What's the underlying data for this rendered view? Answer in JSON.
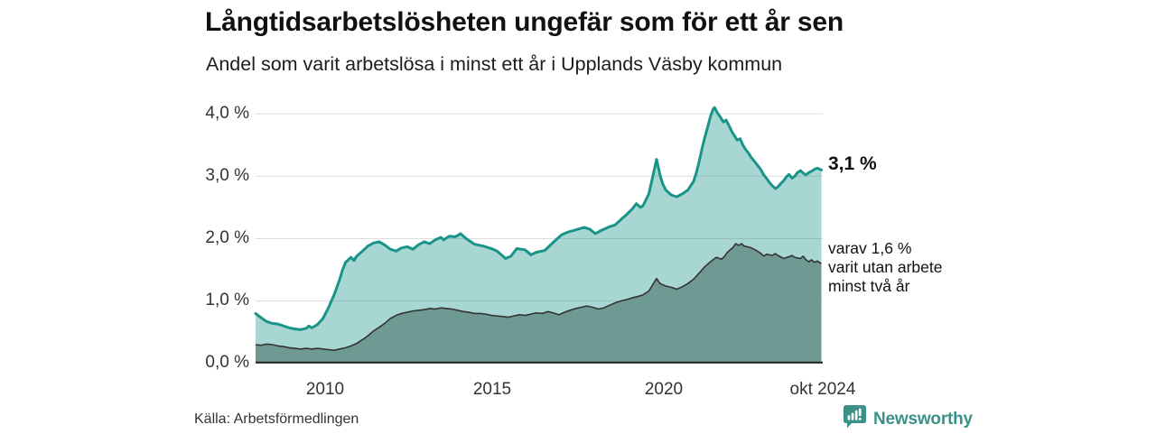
{
  "title": "Långtidsarbetslösheten ungefär som för ett år sen",
  "subtitle": "Andel som varit arbetslösa i minst ett år i Upplands Väsby kommun",
  "source": "Källa: Arbetsförmedlingen",
  "branding": {
    "name": "Newsworthy"
  },
  "annotations": {
    "total_end_label": "3,1 %",
    "subset_end_lines": [
      "varav 1,6 %",
      "varit utan arbete",
      "minst två år"
    ]
  },
  "colors": {
    "line_total": "#1a9488",
    "fill_total": "rgba(26,148,136,0.38)",
    "line_subset": "#333333",
    "fill_subset": "#6f9a94",
    "grid": "#dcdcdc",
    "axis": "#222222",
    "text": "#333333",
    "brand_teal": "#3b9188"
  },
  "chart_data": {
    "type": "area",
    "unit": "%",
    "xlabel": "",
    "ylabel": "",
    "xlim": [
      2008.0,
      2024.83
    ],
    "ylim": [
      0,
      4.1
    ],
    "grid": true,
    "gridlines": [
      1,
      2,
      3,
      4
    ],
    "y_ticks": [
      "0,0 %",
      "1,0 %",
      "2,0 %",
      "3,0 %",
      "4,0 %"
    ],
    "x_ticks": [
      "2010",
      "2015",
      "2020",
      "okt 2024"
    ],
    "x_tick_years": [
      2010,
      2015,
      2020,
      2024.79
    ],
    "legend_position": "direct-labels-right",
    "series": [
      {
        "name": "Andel arbetslösa minst ett år",
        "end_value": 3.1,
        "color": "#1a9488",
        "fill": "rgba(26,148,136,0.38)",
        "stroke_width": 3,
        "points": [
          [
            2008.0,
            0.8
          ],
          [
            2008.17,
            0.73
          ],
          [
            2008.33,
            0.67
          ],
          [
            2008.5,
            0.64
          ],
          [
            2008.67,
            0.63
          ],
          [
            2008.83,
            0.6
          ],
          [
            2009.0,
            0.57
          ],
          [
            2009.17,
            0.55
          ],
          [
            2009.33,
            0.54
          ],
          [
            2009.5,
            0.56
          ],
          [
            2009.58,
            0.6
          ],
          [
            2009.67,
            0.57
          ],
          [
            2009.83,
            0.62
          ],
          [
            2010.0,
            0.72
          ],
          [
            2010.17,
            0.9
          ],
          [
            2010.33,
            1.1
          ],
          [
            2010.5,
            1.35
          ],
          [
            2010.58,
            1.5
          ],
          [
            2010.67,
            1.62
          ],
          [
            2010.83,
            1.7
          ],
          [
            2010.92,
            1.65
          ],
          [
            2011.0,
            1.72
          ],
          [
            2011.17,
            1.8
          ],
          [
            2011.33,
            1.88
          ],
          [
            2011.5,
            1.93
          ],
          [
            2011.67,
            1.95
          ],
          [
            2011.83,
            1.9
          ],
          [
            2012.0,
            1.83
          ],
          [
            2012.17,
            1.8
          ],
          [
            2012.33,
            1.85
          ],
          [
            2012.5,
            1.87
          ],
          [
            2012.67,
            1.83
          ],
          [
            2012.83,
            1.9
          ],
          [
            2013.0,
            1.95
          ],
          [
            2013.17,
            1.92
          ],
          [
            2013.33,
            1.98
          ],
          [
            2013.5,
            2.02
          ],
          [
            2013.58,
            1.98
          ],
          [
            2013.75,
            2.04
          ],
          [
            2013.92,
            2.03
          ],
          [
            2014.0,
            2.05
          ],
          [
            2014.08,
            2.08
          ],
          [
            2014.25,
            2.0
          ],
          [
            2014.5,
            1.91
          ],
          [
            2014.75,
            1.88
          ],
          [
            2015.0,
            1.84
          ],
          [
            2015.17,
            1.8
          ],
          [
            2015.42,
            1.68
          ],
          [
            2015.58,
            1.72
          ],
          [
            2015.75,
            1.84
          ],
          [
            2016.0,
            1.82
          ],
          [
            2016.17,
            1.74
          ],
          [
            2016.33,
            1.78
          ],
          [
            2016.58,
            1.81
          ],
          [
            2016.83,
            1.94
          ],
          [
            2017.08,
            2.06
          ],
          [
            2017.25,
            2.1
          ],
          [
            2017.5,
            2.14
          ],
          [
            2017.75,
            2.18
          ],
          [
            2017.92,
            2.15
          ],
          [
            2018.08,
            2.08
          ],
          [
            2018.25,
            2.13
          ],
          [
            2018.5,
            2.19
          ],
          [
            2018.67,
            2.22
          ],
          [
            2018.83,
            2.3
          ],
          [
            2019.0,
            2.38
          ],
          [
            2019.17,
            2.47
          ],
          [
            2019.3,
            2.56
          ],
          [
            2019.42,
            2.5
          ],
          [
            2019.5,
            2.53
          ],
          [
            2019.67,
            2.72
          ],
          [
            2019.83,
            3.1
          ],
          [
            2019.9,
            3.27
          ],
          [
            2020.0,
            3.02
          ],
          [
            2020.08,
            2.88
          ],
          [
            2020.17,
            2.78
          ],
          [
            2020.33,
            2.7
          ],
          [
            2020.5,
            2.67
          ],
          [
            2020.67,
            2.72
          ],
          [
            2020.83,
            2.78
          ],
          [
            2021.0,
            2.92
          ],
          [
            2021.08,
            3.06
          ],
          [
            2021.17,
            3.25
          ],
          [
            2021.25,
            3.45
          ],
          [
            2021.33,
            3.62
          ],
          [
            2021.42,
            3.8
          ],
          [
            2021.5,
            3.96
          ],
          [
            2021.58,
            4.08
          ],
          [
            2021.62,
            4.1
          ],
          [
            2021.7,
            4.02
          ],
          [
            2021.79,
            3.95
          ],
          [
            2021.88,
            3.87
          ],
          [
            2021.96,
            3.9
          ],
          [
            2022.04,
            3.82
          ],
          [
            2022.13,
            3.72
          ],
          [
            2022.21,
            3.65
          ],
          [
            2022.29,
            3.58
          ],
          [
            2022.38,
            3.6
          ],
          [
            2022.46,
            3.5
          ],
          [
            2022.54,
            3.43
          ],
          [
            2022.63,
            3.37
          ],
          [
            2022.71,
            3.3
          ],
          [
            2022.83,
            3.22
          ],
          [
            2022.92,
            3.16
          ],
          [
            2023.0,
            3.1
          ],
          [
            2023.08,
            3.02
          ],
          [
            2023.17,
            2.96
          ],
          [
            2023.25,
            2.9
          ],
          [
            2023.33,
            2.85
          ],
          [
            2023.42,
            2.8
          ],
          [
            2023.5,
            2.83
          ],
          [
            2023.58,
            2.88
          ],
          [
            2023.67,
            2.93
          ],
          [
            2023.75,
            2.99
          ],
          [
            2023.83,
            3.03
          ],
          [
            2023.92,
            2.97
          ],
          [
            2024.0,
            3.0
          ],
          [
            2024.08,
            3.06
          ],
          [
            2024.17,
            3.09
          ],
          [
            2024.25,
            3.05
          ],
          [
            2024.33,
            3.02
          ],
          [
            2024.42,
            3.06
          ],
          [
            2024.5,
            3.08
          ],
          [
            2024.58,
            3.11
          ],
          [
            2024.67,
            3.13
          ],
          [
            2024.79,
            3.1
          ]
        ]
      },
      {
        "name": "varav utan arbete minst två år",
        "end_value": 1.6,
        "color": "#333333",
        "fill": "#6f9a94",
        "stroke_width": 1.6,
        "points": [
          [
            2008.0,
            0.3
          ],
          [
            2008.17,
            0.29
          ],
          [
            2008.33,
            0.31
          ],
          [
            2008.5,
            0.3
          ],
          [
            2008.67,
            0.28
          ],
          [
            2008.83,
            0.27
          ],
          [
            2009.0,
            0.25
          ],
          [
            2009.17,
            0.24
          ],
          [
            2009.33,
            0.23
          ],
          [
            2009.5,
            0.24
          ],
          [
            2009.67,
            0.23
          ],
          [
            2009.83,
            0.24
          ],
          [
            2010.0,
            0.23
          ],
          [
            2010.17,
            0.22
          ],
          [
            2010.33,
            0.21
          ],
          [
            2010.5,
            0.23
          ],
          [
            2010.67,
            0.25
          ],
          [
            2010.83,
            0.28
          ],
          [
            2011.0,
            0.32
          ],
          [
            2011.17,
            0.38
          ],
          [
            2011.33,
            0.44
          ],
          [
            2011.5,
            0.52
          ],
          [
            2011.67,
            0.58
          ],
          [
            2011.83,
            0.64
          ],
          [
            2012.0,
            0.72
          ],
          [
            2012.17,
            0.77
          ],
          [
            2012.33,
            0.8
          ],
          [
            2012.5,
            0.82
          ],
          [
            2012.67,
            0.84
          ],
          [
            2012.83,
            0.85
          ],
          [
            2013.0,
            0.86
          ],
          [
            2013.17,
            0.88
          ],
          [
            2013.33,
            0.87
          ],
          [
            2013.5,
            0.89
          ],
          [
            2013.67,
            0.88
          ],
          [
            2013.83,
            0.87
          ],
          [
            2014.0,
            0.85
          ],
          [
            2014.17,
            0.83
          ],
          [
            2014.33,
            0.82
          ],
          [
            2014.5,
            0.8
          ],
          [
            2014.67,
            0.8
          ],
          [
            2014.83,
            0.79
          ],
          [
            2015.0,
            0.77
          ],
          [
            2015.17,
            0.76
          ],
          [
            2015.33,
            0.75
          ],
          [
            2015.5,
            0.74
          ],
          [
            2015.67,
            0.76
          ],
          [
            2015.83,
            0.78
          ],
          [
            2016.0,
            0.77
          ],
          [
            2016.17,
            0.79
          ],
          [
            2016.33,
            0.81
          ],
          [
            2016.5,
            0.8
          ],
          [
            2016.67,
            0.83
          ],
          [
            2016.83,
            0.81
          ],
          [
            2017.0,
            0.78
          ],
          [
            2017.17,
            0.82
          ],
          [
            2017.33,
            0.85
          ],
          [
            2017.5,
            0.88
          ],
          [
            2017.67,
            0.9
          ],
          [
            2017.83,
            0.92
          ],
          [
            2018.0,
            0.9
          ],
          [
            2018.17,
            0.87
          ],
          [
            2018.33,
            0.89
          ],
          [
            2018.5,
            0.93
          ],
          [
            2018.67,
            0.97
          ],
          [
            2018.83,
            1.0
          ],
          [
            2019.0,
            1.02
          ],
          [
            2019.17,
            1.05
          ],
          [
            2019.33,
            1.07
          ],
          [
            2019.5,
            1.1
          ],
          [
            2019.67,
            1.16
          ],
          [
            2019.83,
            1.3
          ],
          [
            2019.9,
            1.36
          ],
          [
            2020.0,
            1.28
          ],
          [
            2020.17,
            1.24
          ],
          [
            2020.33,
            1.22
          ],
          [
            2020.5,
            1.19
          ],
          [
            2020.67,
            1.23
          ],
          [
            2020.83,
            1.28
          ],
          [
            2021.0,
            1.35
          ],
          [
            2021.17,
            1.45
          ],
          [
            2021.33,
            1.55
          ],
          [
            2021.5,
            1.63
          ],
          [
            2021.67,
            1.7
          ],
          [
            2021.83,
            1.67
          ],
          [
            2021.92,
            1.72
          ],
          [
            2022.0,
            1.78
          ],
          [
            2022.17,
            1.86
          ],
          [
            2022.25,
            1.92
          ],
          [
            2022.33,
            1.89
          ],
          [
            2022.42,
            1.92
          ],
          [
            2022.5,
            1.88
          ],
          [
            2022.67,
            1.86
          ],
          [
            2022.83,
            1.82
          ],
          [
            2023.0,
            1.76
          ],
          [
            2023.08,
            1.72
          ],
          [
            2023.17,
            1.75
          ],
          [
            2023.33,
            1.73
          ],
          [
            2023.42,
            1.76
          ],
          [
            2023.5,
            1.73
          ],
          [
            2023.67,
            1.68
          ],
          [
            2023.83,
            1.71
          ],
          [
            2023.92,
            1.73
          ],
          [
            2024.0,
            1.7
          ],
          [
            2024.17,
            1.68
          ],
          [
            2024.25,
            1.72
          ],
          [
            2024.33,
            1.66
          ],
          [
            2024.42,
            1.63
          ],
          [
            2024.5,
            1.66
          ],
          [
            2024.58,
            1.62
          ],
          [
            2024.67,
            1.64
          ],
          [
            2024.79,
            1.6
          ]
        ]
      }
    ]
  }
}
